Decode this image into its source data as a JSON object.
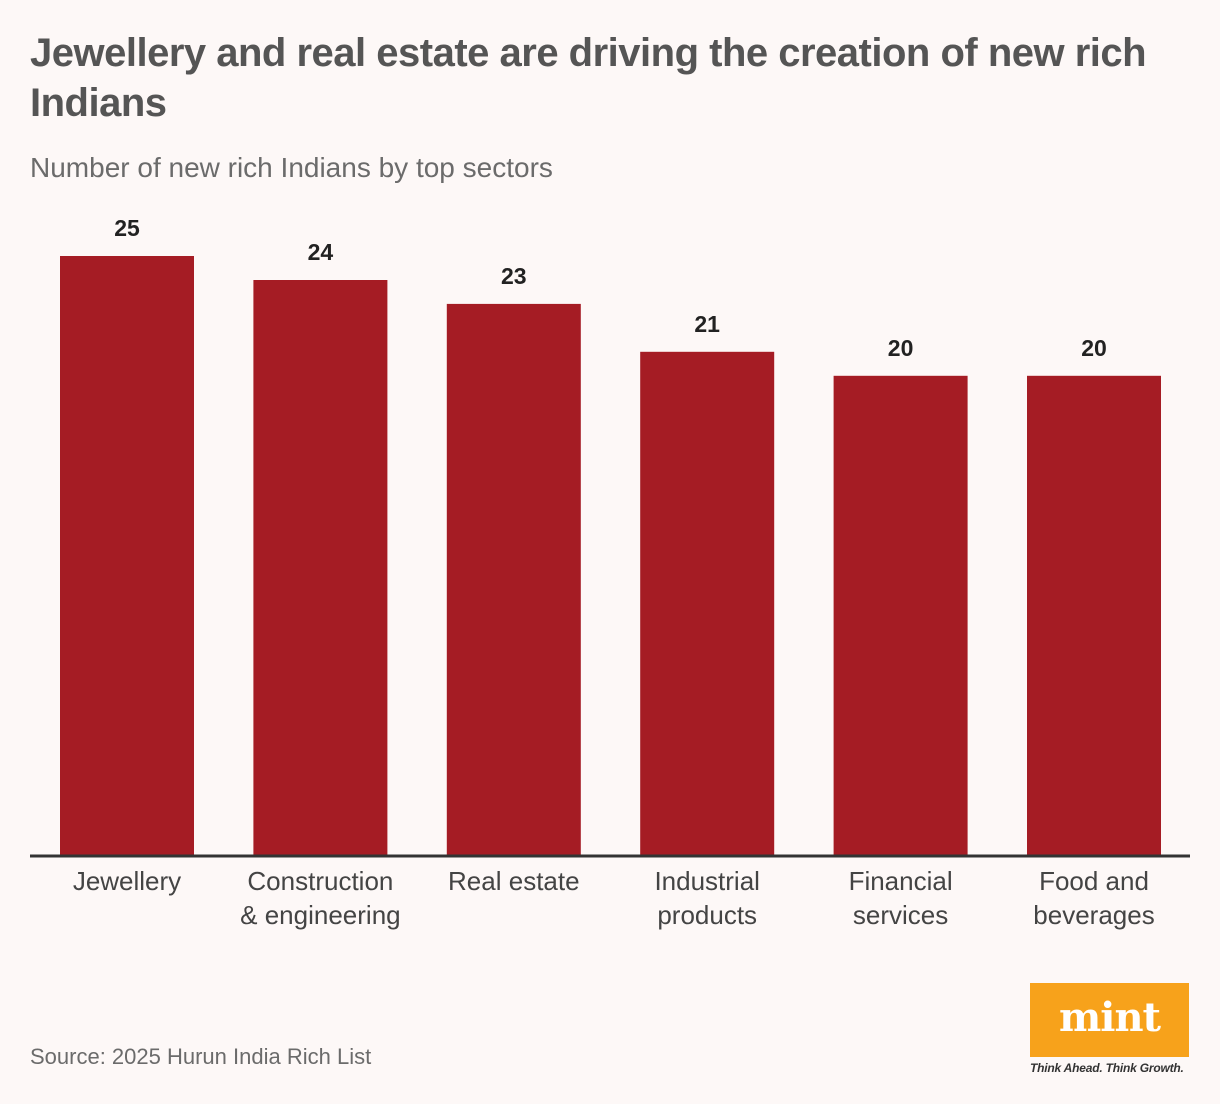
{
  "header": {
    "title": "Jewellery and real estate are driving the creation of new rich Indians",
    "subtitle": "Number of new rich Indians by top sectors"
  },
  "chart_data": {
    "type": "bar",
    "title": "Jewellery and real estate are driving the creation of new rich Indians",
    "subtitle": "Number of new rich Indians by top sectors",
    "categories": [
      [
        "Jewellery"
      ],
      [
        "Construction",
        "& engineering"
      ],
      [
        "Real estate"
      ],
      [
        "Industrial",
        "products"
      ],
      [
        "Financial",
        "services"
      ],
      [
        "Food and",
        "beverages"
      ]
    ],
    "values": [
      25,
      24,
      23,
      21,
      20,
      20
    ],
    "xlabel": "",
    "ylabel": "",
    "ylim": [
      0,
      25
    ],
    "grid": false,
    "legend": "none",
    "bar_color": "#a51c24",
    "axis_color": "#333333"
  },
  "footer": {
    "source": "Source: 2025 Hurun India Rich List"
  },
  "logo": {
    "word": "mint",
    "tagline": "Think Ahead. Think Growth.",
    "color": "#f7a21b"
  }
}
